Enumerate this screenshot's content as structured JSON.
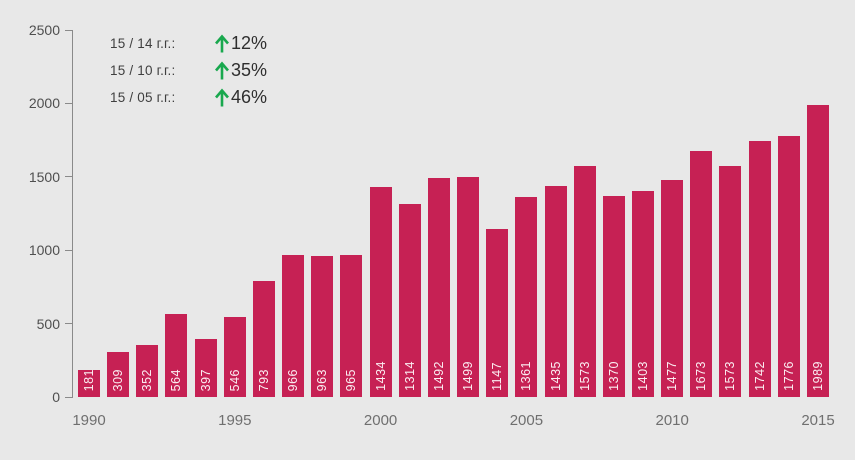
{
  "chart_data": {
    "type": "bar",
    "categories": [
      1990,
      1991,
      1992,
      1993,
      1994,
      1995,
      1996,
      1997,
      1998,
      1999,
      2000,
      2001,
      2002,
      2003,
      2004,
      2005,
      2006,
      2007,
      2008,
      2009,
      2010,
      2011,
      2012,
      2013,
      2014,
      2015
    ],
    "values": [
      181,
      309,
      352,
      564,
      397,
      546,
      793,
      966,
      963,
      965,
      1434,
      1314,
      1492,
      1499,
      1147,
      1361,
      1435,
      1573,
      1370,
      1403,
      1477,
      1673,
      1573,
      1742,
      1776,
      1989
    ],
    "title": "",
    "xlabel": "",
    "ylabel": "",
    "ylim": [
      0,
      2500
    ],
    "y_ticks": [
      0,
      500,
      1000,
      1500,
      2000,
      2500
    ],
    "x_tick_labels": [
      "1990",
      "1995",
      "2000",
      "2005",
      "2010",
      "2015"
    ],
    "grid": false,
    "legend_position": "none",
    "bar_value_labels_inside": true
  },
  "annotations": [
    {
      "label": "15 / 14 г.г.:",
      "icon": "up-arrow",
      "value": "12%"
    },
    {
      "label": "15 / 10 г.г.:",
      "icon": "up-arrow",
      "value": "35%"
    },
    {
      "label": "15 / 05 г.г.:",
      "icon": "up-arrow",
      "value": "46%"
    }
  ],
  "colors": {
    "background": "#e8e8e8",
    "bar": "#c62154",
    "bar_label": "rgba(255,255,255,0.92)",
    "axis": "#8a8a8a",
    "y_tick_text": "#4f4f4f",
    "x_tick_text": "#6f6f6f",
    "annotation_label": "#3f3f3f",
    "annotation_value": "#2e2e2e",
    "arrow_green": "#19a84e"
  }
}
